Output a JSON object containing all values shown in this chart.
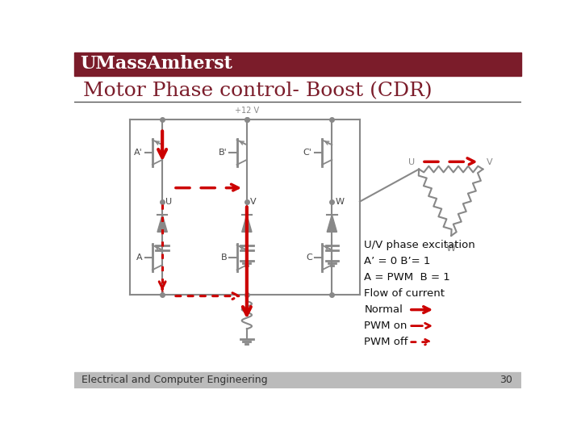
{
  "title": "Motor Phase control- Boost (CDR)",
  "header_bg": "#7B1C2A",
  "header_text": "UMassAmherst",
  "header_text_color": "#FFFFFF",
  "title_color": "#7B1C2A",
  "bg_color": "#FFFFFF",
  "footer_bg": "#BBBBBB",
  "footer_text": "Electrical and Computer Engineering",
  "footer_number": "30",
  "arrow_color": "#CC0000",
  "circuit_color": "#888888",
  "annotation_lines": [
    "U/V phase excitation",
    "A’ = 0 B’= 1",
    "A = PWM  B = 1",
    "Flow of current",
    "Normal",
    "PWM on",
    "PWM off"
  ]
}
